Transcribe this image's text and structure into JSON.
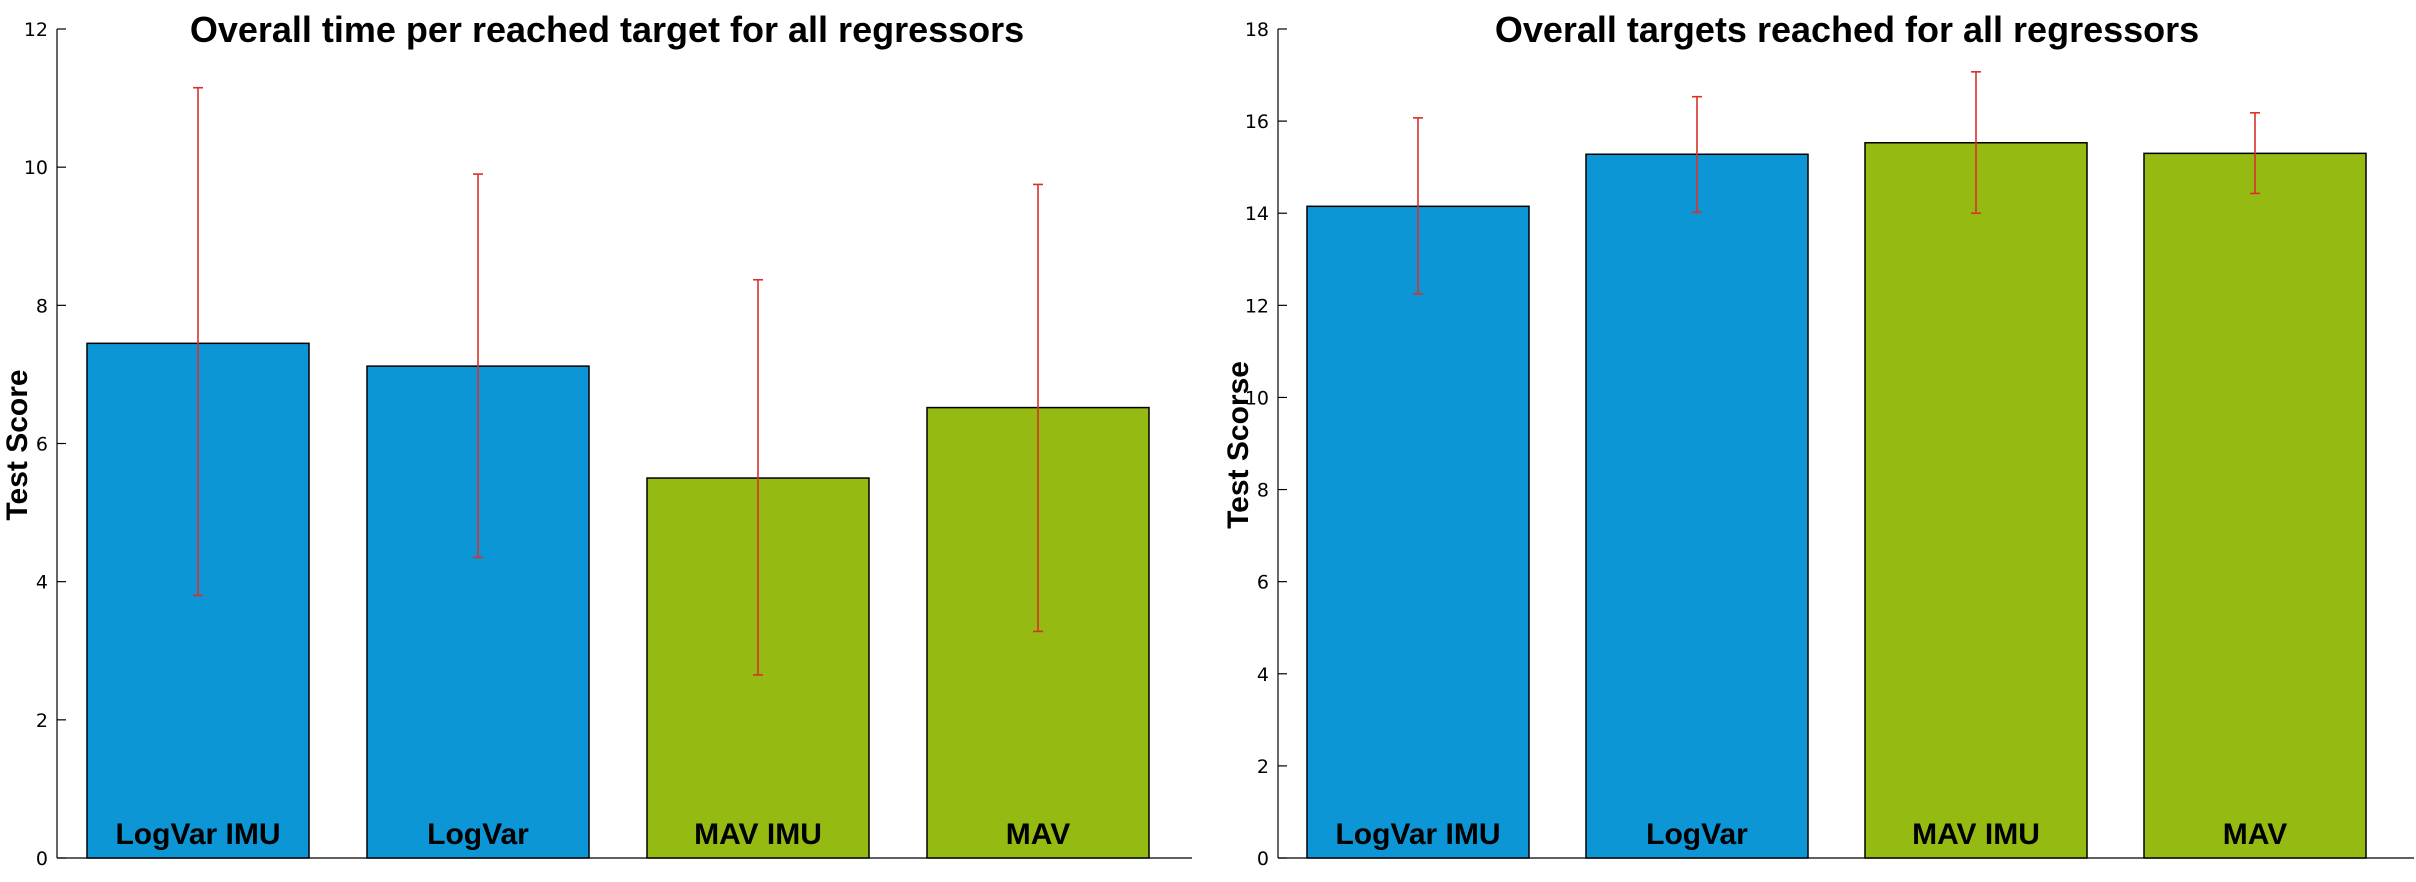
{
  "chart_data": [
    {
      "type": "bar",
      "title": "Overall time per reached target for all regressors",
      "ylabel": "Test Score",
      "categories": [
        "LogVar IMU",
        "LogVar",
        "MAV IMU",
        "MAV"
      ],
      "values": [
        7.45,
        7.12,
        5.5,
        6.52
      ],
      "error_low": [
        3.8,
        4.35,
        2.65,
        3.28
      ],
      "error_high": [
        11.15,
        9.9,
        8.37,
        9.75
      ],
      "colors": [
        "#0c96d5",
        "#0c96d5",
        "#95bb12",
        "#95bb12"
      ],
      "error_color": "#d9312b",
      "ylim": [
        0,
        12
      ],
      "yticks": [
        0,
        2,
        4,
        6,
        8,
        10,
        12
      ],
      "grid": false
    },
    {
      "type": "bar",
      "title": "Overall targets reached for all regressors",
      "ylabel": "Test Scorse",
      "categories": [
        "LogVar IMU",
        "LogVar",
        "MAV IMU",
        "MAV"
      ],
      "values": [
        14.15,
        15.28,
        15.53,
        15.3
      ],
      "error_low": [
        12.25,
        14.02,
        14.0,
        14.43
      ],
      "error_high": [
        16.07,
        16.53,
        17.07,
        16.18
      ],
      "colors": [
        "#0c96d5",
        "#0c96d5",
        "#95bb12",
        "#95bb12"
      ],
      "error_color": "#d9312b",
      "ylim": [
        0,
        18
      ],
      "yticks": [
        0,
        2,
        4,
        6,
        8,
        10,
        12,
        14,
        16,
        18
      ],
      "grid": false
    }
  ]
}
